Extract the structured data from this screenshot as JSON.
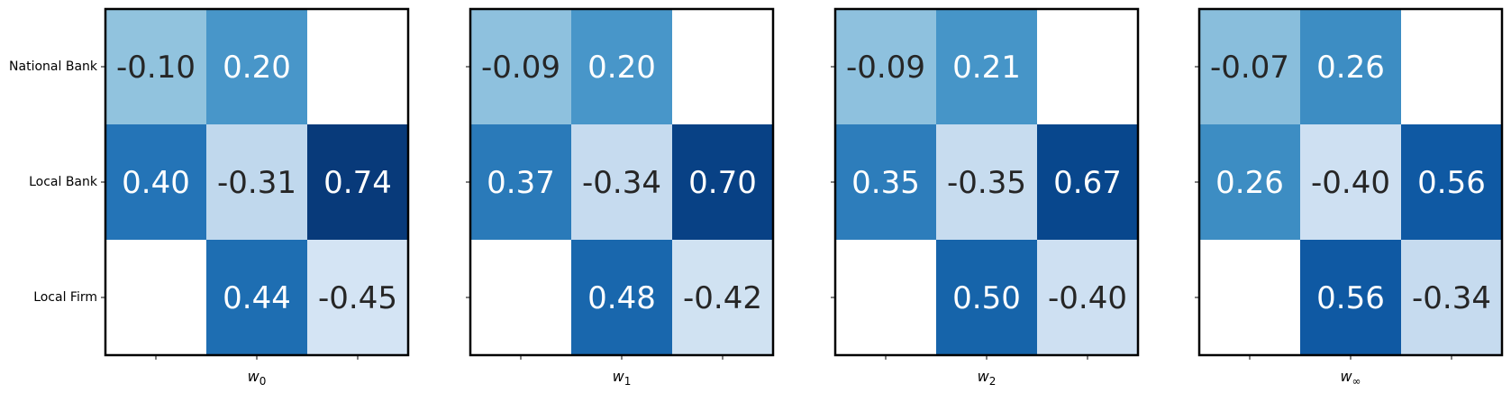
{
  "chart_data": {
    "type": "heatmap",
    "colormap": "Blues",
    "row_labels": [
      "National Bank",
      "Local Bank",
      "Local Firm"
    ],
    "panels": [
      {
        "xlabel": "w",
        "xlabel_sub": "0",
        "values": [
          [
            -0.1,
            0.2,
            null
          ],
          [
            0.4,
            -0.31,
            0.74
          ],
          [
            null,
            0.44,
            -0.45
          ]
        ]
      },
      {
        "xlabel": "w",
        "xlabel_sub": "1",
        "values": [
          [
            -0.09,
            0.2,
            null
          ],
          [
            0.37,
            -0.34,
            0.7
          ],
          [
            null,
            0.48,
            -0.42
          ]
        ]
      },
      {
        "xlabel": "w",
        "xlabel_sub": "2",
        "values": [
          [
            -0.09,
            0.21,
            null
          ],
          [
            0.35,
            -0.35,
            0.67
          ],
          [
            null,
            0.5,
            -0.4
          ]
        ]
      },
      {
        "xlabel": "w",
        "xlabel_sub": "∞",
        "values": [
          [
            -0.07,
            0.26,
            null
          ],
          [
            0.26,
            -0.4,
            0.56
          ],
          [
            null,
            0.56,
            -0.34
          ]
        ]
      }
    ]
  }
}
